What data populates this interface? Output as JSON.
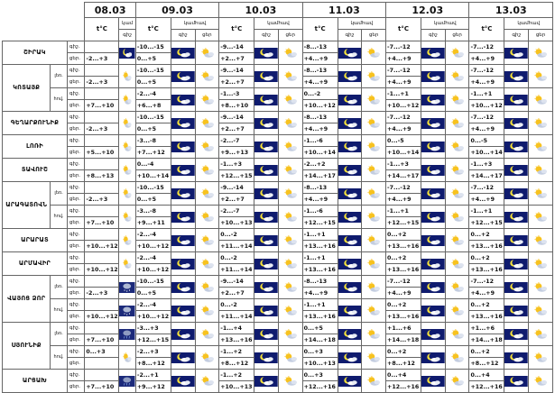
{
  "dates": [
    "08.03",
    "09.03",
    "10.03",
    "11.03",
    "12.03",
    "13.03"
  ],
  "header": {
    "temp": "t°C",
    "bright": "կամհավ",
    "night": "գիշ",
    "day": "ցեր",
    "first_day_top": "կամ",
    "first_day_bot": "գիշ"
  },
  "periods": {
    "night": "գիշ.",
    "day": "ցեր."
  },
  "regions": [
    {
      "name": "ՇԻՐԱԿ",
      "subs": [
        {
          "label": "",
          "night": [
            "",
            "-10...-15",
            "-9...-14",
            "-8...-13",
            "-7...-12",
            "-7...-12"
          ],
          "day": [
            "-2...+3",
            "0...+5",
            "+2...+7",
            "+4...+9",
            "+4...+9",
            "+4...+9"
          ],
          "icons": [
            [
              "",
              "moon-c"
            ],
            [
              "moon-c",
              "sun-c"
            ],
            [
              "moon-c",
              "sun-c"
            ],
            [
              "moon-c",
              "sun-c"
            ],
            [
              "moon-c",
              "sun-c"
            ],
            [
              "moon-c",
              "sun-c"
            ]
          ]
        }
      ]
    },
    {
      "name": "ԿՈՏԱՅՔ",
      "subs": [
        {
          "label": "լեռ.",
          "night": [
            "",
            "-10...-15",
            "-9...-14",
            "-8...-13",
            "-7...-12",
            "-7...-12"
          ],
          "day": [
            "-2...+3",
            "0...+5",
            "+2...+7",
            "+4...+9",
            "+4...+9",
            "+4...+9"
          ],
          "icons": [
            [
              "",
              "sun-c"
            ],
            [
              "moon-c",
              "sun-c"
            ],
            [
              "moon-c",
              "sun-c"
            ],
            [
              "moon-c",
              "sun-c"
            ],
            [
              "moon-c",
              "sun-c"
            ],
            [
              "moon-c",
              "sun-c"
            ]
          ]
        },
        {
          "label": "հով.",
          "night": [
            "",
            "-2...-4",
            "-1...-3",
            "0...-2",
            "-1...+1",
            "-1...+1"
          ],
          "day": [
            "+7...+10",
            "+6...+8",
            "+8...+10",
            "+10...+12",
            "+10...+12",
            "+10...+12"
          ],
          "icons": [
            [
              "",
              "sun-c"
            ],
            [
              "moon-c",
              "sun-c"
            ],
            [
              "moon-c",
              "sun-c"
            ],
            [
              "moon-c",
              "sun-c"
            ],
            [
              "moon-c",
              "sun-c"
            ],
            [
              "moon-c",
              "sun-c"
            ]
          ]
        }
      ]
    },
    {
      "name": "ԳԵՂԱՐՔՈՒՆԻՔ",
      "subs": [
        {
          "label": "",
          "night": [
            "",
            "-10...-15",
            "-9...-14",
            "-8...-13",
            "-7...-12",
            "-7...-12"
          ],
          "day": [
            "-2...+3",
            "0...+5",
            "+2...+7",
            "+4...+9",
            "+4...+9",
            "+4...+9"
          ],
          "icons": [
            [
              "",
              "sun-c"
            ],
            [
              "moon-c",
              "sun-c"
            ],
            [
              "moon-c",
              "sun-c"
            ],
            [
              "moon-c",
              "sun-c"
            ],
            [
              "moon-c",
              "sun-c"
            ],
            [
              "moon-c",
              "sun-c"
            ]
          ]
        }
      ]
    },
    {
      "name": "ԼՈՌԻ",
      "subs": [
        {
          "label": "",
          "night": [
            "",
            "-3...-8",
            "-2...-7",
            "-1...-6",
            "0...-5",
            "0...-5"
          ],
          "day": [
            "+5...+10",
            "+7...+12",
            "+9...+13",
            "+10...+14",
            "+10...+14",
            "+10...+14"
          ],
          "icons": [
            [
              "",
              "sun-c"
            ],
            [
              "moon-c",
              "sun-c"
            ],
            [
              "moon-c",
              "sun-c"
            ],
            [
              "moon-c",
              "sun-c"
            ],
            [
              "moon-c",
              "sun-c"
            ],
            [
              "moon-c",
              "sun-c"
            ]
          ]
        }
      ]
    },
    {
      "name": "ՏԱՎՈՒՇ",
      "subs": [
        {
          "label": "",
          "night": [
            "",
            "0...-4",
            "-1...+3",
            "-2...+2",
            "-1...+3",
            "-1...+3"
          ],
          "day": [
            "+8...+13",
            "+10...+14",
            "+12...+15",
            "+14...+17",
            "+14...+17",
            "+14...+17"
          ],
          "icons": [
            [
              "",
              "sun-c"
            ],
            [
              "moon-c",
              "sun-c"
            ],
            [
              "moon-c",
              "sun-c"
            ],
            [
              "moon-c",
              "sun-c"
            ],
            [
              "moon-c",
              "sun-c"
            ],
            [
              "moon-c",
              "sun-c"
            ]
          ]
        }
      ]
    },
    {
      "name": "ԱՐԱԳԱՏՈՎՆ",
      "subs": [
        {
          "label": "լեռ.",
          "night": [
            "",
            "-10...-15",
            "-9...-14",
            "-8...-13",
            "-7...-12",
            "-7...-12"
          ],
          "day": [
            "-2...+3",
            "0...+5",
            "+2...+7",
            "+4...+9",
            "+4...+9",
            "+4...+9"
          ],
          "icons": [
            [
              "",
              "sun-c"
            ],
            [
              "moon-c",
              "sun-c"
            ],
            [
              "moon-c",
              "sun-c"
            ],
            [
              "moon-c",
              "sun-c"
            ],
            [
              "moon-c",
              "sun-c"
            ],
            [
              "moon-c",
              "sun-c"
            ]
          ]
        },
        {
          "label": "հով.",
          "night": [
            "",
            "-3...-8",
            "-2...-7",
            "-1...-6",
            "-1...+1",
            "-1...+1"
          ],
          "day": [
            "+7...+10",
            "+9...+11",
            "+10...+13",
            "+12...+15",
            "+12...+15",
            "+12...+15"
          ],
          "icons": [
            [
              "",
              "sun-c"
            ],
            [
              "moon-c",
              "sun-c"
            ],
            [
              "moon-c",
              "sun-c"
            ],
            [
              "moon-c",
              "sun-c"
            ],
            [
              "moon-c",
              "sun-c"
            ],
            [
              "moon-c",
              "sun-c"
            ]
          ]
        }
      ]
    },
    {
      "name": "ԱՐԱՐԱՏ",
      "subs": [
        {
          "label": "",
          "night": [
            "",
            "-2...-4",
            "0...-2",
            "-1...+1",
            "0...+2",
            "0...+2"
          ],
          "day": [
            "+10...+12",
            "+10...+12",
            "+11...+14",
            "+13...+16",
            "+13...+16",
            "+13...+16"
          ],
          "icons": [
            [
              "",
              "sun-c"
            ],
            [
              "moon-c",
              "sun-c"
            ],
            [
              "moon-c",
              "sun-c"
            ],
            [
              "moon-c",
              "sun-c"
            ],
            [
              "moon-c",
              "sun-c"
            ],
            [
              "moon-c",
              "sun-c"
            ]
          ]
        }
      ]
    },
    {
      "name": "ԱՐՄԱՎԻՐ",
      "subs": [
        {
          "label": "",
          "night": [
            "",
            "-2...-4",
            "0...-2",
            "-1...+1",
            "0...+2",
            "0...+2"
          ],
          "day": [
            "+10...+12",
            "+10...+12",
            "+11...+14",
            "+13...+16",
            "+13...+16",
            "+13...+16"
          ],
          "icons": [
            [
              "",
              "sun-c"
            ],
            [
              "moon-c",
              "sun-c"
            ],
            [
              "moon-c",
              "sun-c"
            ],
            [
              "moon-c",
              "sun-c"
            ],
            [
              "moon-c",
              "sun-c"
            ],
            [
              "moon-c",
              "sun-c"
            ]
          ]
        }
      ]
    },
    {
      "name": "ՎԱՅՈՑ ՁՈՐ",
      "subs": [
        {
          "label": "լեռ.",
          "night": [
            "",
            "-10...-15",
            "-9...-14",
            "-8...-13",
            "-7...-12",
            "-7...-12"
          ],
          "day": [
            "-2...+3",
            "0...+5",
            "+2...+7",
            "+4...+9",
            "+4...+9",
            "+4...+9"
          ],
          "icons": [
            [
              "",
              "snow"
            ],
            [
              "moon-c",
              "sun-c"
            ],
            [
              "moon-c",
              "sun-c"
            ],
            [
              "moon-c",
              "sun-c"
            ],
            [
              "moon-c",
              "sun-c"
            ],
            [
              "moon-c",
              "sun-c"
            ]
          ]
        },
        {
          "label": "հով.",
          "night": [
            "",
            "-2...-4",
            "0...-2",
            "-1...+1",
            "0...+2",
            "0...+2"
          ],
          "day": [
            "+10...+12",
            "+10...+12",
            "+11...+14",
            "+13...+16",
            "+13...+16",
            "+13...+16"
          ],
          "icons": [
            [
              "",
              "snow"
            ],
            [
              "moon-c",
              "sun-c"
            ],
            [
              "moon-c",
              "sun-c"
            ],
            [
              "moon-c",
              "sun-c"
            ],
            [
              "moon-c",
              "sun-c"
            ],
            [
              "moon-c",
              "sun-c"
            ]
          ]
        }
      ]
    },
    {
      "name": "ՍՅՈՒՆԻՔ",
      "subs": [
        {
          "label": "լեռ.",
          "night": [
            "",
            "-3...+3",
            "-1...+4",
            "0...+5",
            "+1...+6",
            "+1...+6"
          ],
          "day": [
            "+7...+10",
            "+12...+15",
            "+13...+16",
            "+14...+18",
            "+14...+18",
            "+14...+18"
          ],
          "icons": [
            [
              "",
              "rain"
            ],
            [
              "moon-c",
              "sun-c"
            ],
            [
              "moon-c",
              "sun-c"
            ],
            [
              "moon-c",
              "sun-c"
            ],
            [
              "moon-c",
              "sun-c"
            ],
            [
              "moon-c",
              "sun-c"
            ]
          ]
        },
        {
          "label": "հով.",
          "night": [
            "0...+3",
            "-2...+3",
            "-1...+2",
            "0...+3",
            "0...+2",
            "0...+2"
          ],
          "day": [
            "",
            "+8...+12",
            "+8...+12",
            "+10...+13",
            "+8...+12",
            "+8...+12"
          ],
          "icons": [
            [
              "",
              "sun-c"
            ],
            [
              "moon-c",
              "sun-c"
            ],
            [
              "moon-c",
              "sun-c"
            ],
            [
              "moon-c",
              "sun-c"
            ],
            [
              "moon-c",
              "sun-c"
            ],
            [
              "moon-c",
              "sun-c"
            ]
          ]
        }
      ]
    },
    {
      "name": "ԱՐՑԱԽ",
      "subs": [
        {
          "label": "",
          "night": [
            "",
            "-2...+1",
            "-1...+2",
            "0...+3",
            "0...+4",
            "0...+4"
          ],
          "day": [
            "+7...+10",
            "+9...+12",
            "+10...+13",
            "+12...+16",
            "+12...+16",
            "+12...+16"
          ],
          "icons": [
            [
              "",
              "rain"
            ],
            [
              "moon-c",
              "sun-c"
            ],
            [
              "moon-c",
              "sun-c"
            ],
            [
              "moon-c",
              "sun-c"
            ],
            [
              "moon-c",
              "sun-c"
            ],
            [
              "moon-c",
              "sun-c"
            ]
          ]
        }
      ]
    }
  ]
}
